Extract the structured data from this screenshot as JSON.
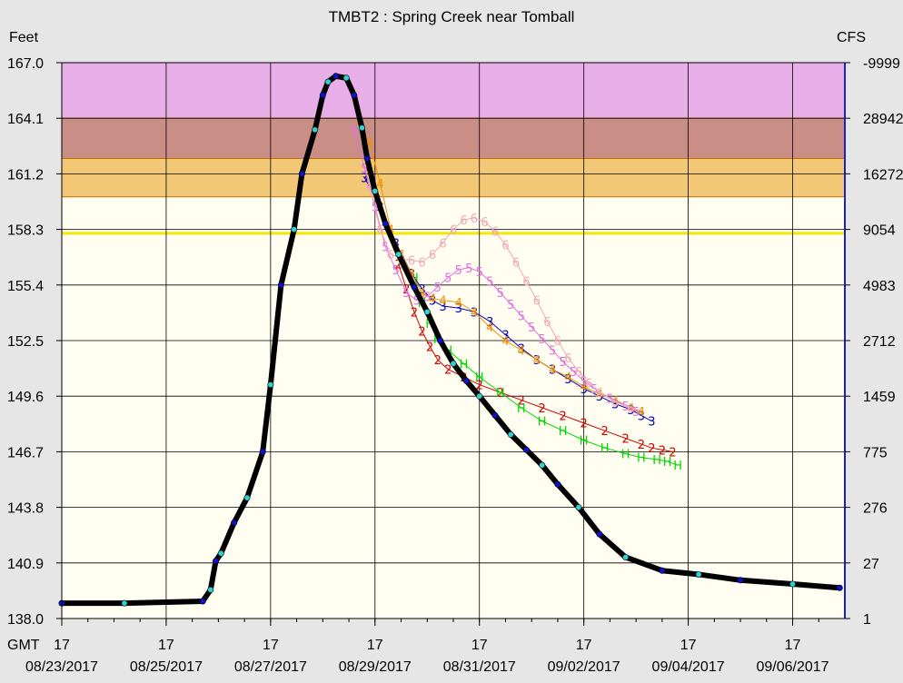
{
  "chart_data": {
    "type": "line",
    "title": "TMBT2  :  Spring Creek near Tomball",
    "ylabel_left": "Feet",
    "ylabel_right": "CFS",
    "x_prefix_label": "GMT",
    "yticks_left": [
      "167.0",
      "164.1",
      "161.2",
      "158.3",
      "155.4",
      "152.5",
      "149.6",
      "146.7",
      "143.8",
      "140.9",
      "138.0"
    ],
    "yticks_right": [
      "-9999",
      "28942",
      "16272",
      "9054",
      "4983",
      "2712",
      "1459",
      "775",
      "276",
      "27",
      "1"
    ],
    "ylim": [
      138.0,
      167.0
    ],
    "xlim_days": [
      0,
      15
    ],
    "xticks": [
      {
        "hour": "17",
        "date": "08/23/2017"
      },
      {
        "hour": "17",
        "date": "08/25/2017"
      },
      {
        "hour": "17",
        "date": "08/27/2017"
      },
      {
        "hour": "17",
        "date": "08/29/2017"
      },
      {
        "hour": "17",
        "date": "08/31/2017"
      },
      {
        "hour": "17",
        "date": "09/02/2017"
      },
      {
        "hour": "17",
        "date": "09/04/2017"
      },
      {
        "hour": "17",
        "date": "09/06/2017"
      }
    ],
    "bands": [
      {
        "from": 164.1,
        "to": 167.0,
        "color": "#e8aee8"
      },
      {
        "from": 162.0,
        "to": 164.1,
        "color": "#c98f86"
      },
      {
        "from": 160.0,
        "to": 162.0,
        "color": "#f2c877"
      }
    ],
    "threshold_line": {
      "value": 158.1,
      "color": "#f5e600"
    },
    "observed": {
      "color": "#000000",
      "marker_colors": [
        "#1010c8",
        "#30d0d0"
      ],
      "x": [
        0,
        1.2,
        2.7,
        2.85,
        2.95,
        3.05,
        3.3,
        3.55,
        3.85,
        4.0,
        4.2,
        4.45,
        4.6,
        4.85,
        5.0,
        5.1,
        5.25,
        5.45,
        5.6,
        5.75,
        5.85,
        6.0,
        6.2,
        6.45,
        6.75,
        7.0,
        7.25,
        7.5,
        7.75,
        8.0,
        8.3,
        8.6,
        8.9,
        9.2,
        9.5,
        9.9,
        10.3,
        10.8,
        11.5,
        12.2,
        13.0,
        14.0,
        14.9
      ],
      "y": [
        138.8,
        138.8,
        138.9,
        139.5,
        141.0,
        141.4,
        143.0,
        144.3,
        146.7,
        150.2,
        155.4,
        158.3,
        161.2,
        163.5,
        165.3,
        166.0,
        166.3,
        166.2,
        165.3,
        163.6,
        162.0,
        160.3,
        158.6,
        157.0,
        155.3,
        154.0,
        152.5,
        151.3,
        150.4,
        149.6,
        148.6,
        147.6,
        146.8,
        146.0,
        145.0,
        143.8,
        142.4,
        141.2,
        140.5,
        140.3,
        140.0,
        139.8,
        139.6
      ]
    },
    "forecast_series": [
      {
        "marker": "2",
        "color": "#d00000",
        "x": [
          6.45,
          6.6,
          6.75,
          6.9,
          7.05,
          7.2,
          7.4,
          7.7,
          8.0,
          8.4,
          8.8,
          9.2,
          9.6,
          10.0,
          10.4,
          10.8,
          11.1,
          11.3,
          11.5,
          11.7
        ],
        "y": [
          156.5,
          155.2,
          154.0,
          153.0,
          152.2,
          151.5,
          151.0,
          150.6,
          150.2,
          149.8,
          149.4,
          149.0,
          148.6,
          148.2,
          147.8,
          147.4,
          147.1,
          146.9,
          146.8,
          146.7
        ]
      },
      {
        "marker": "H",
        "color": "#00d800",
        "x": [
          6.75,
          6.9,
          7.05,
          7.2,
          7.4,
          7.7,
          8.0,
          8.4,
          8.8,
          9.2,
          9.6,
          10.0,
          10.4,
          10.8,
          11.1,
          11.4,
          11.6,
          11.8
        ],
        "y": [
          155.8,
          154.5,
          153.4,
          152.6,
          152.0,
          151.3,
          150.6,
          149.8,
          149.0,
          148.3,
          147.8,
          147.3,
          146.9,
          146.6,
          146.4,
          146.3,
          146.2,
          146.0
        ]
      },
      {
        "marker": "3",
        "color": "#0000c0",
        "x": [
          5.8,
          6.1,
          6.4,
          6.7,
          6.9,
          7.1,
          7.3,
          7.6,
          7.9,
          8.2,
          8.5,
          8.8,
          9.1,
          9.4,
          9.7,
          10.0,
          10.3,
          10.6,
          10.9,
          11.1,
          11.3
        ],
        "y": [
          161.0,
          159.5,
          157.6,
          156.0,
          155.2,
          154.6,
          154.3,
          154.2,
          154.0,
          153.5,
          152.8,
          152.1,
          151.5,
          151.0,
          150.5,
          150.0,
          149.6,
          149.2,
          148.9,
          148.6,
          148.3
        ]
      },
      {
        "marker": "4",
        "color": "#f09000",
        "x": [
          5.7,
          5.9,
          6.1,
          6.3,
          6.5,
          6.7,
          6.9,
          7.1,
          7.3,
          7.6,
          7.9,
          8.2,
          8.5,
          8.8,
          9.1,
          9.4,
          9.7,
          10.0,
          10.3,
          10.6,
          10.9,
          11.1
        ],
        "y": [
          164.0,
          162.8,
          160.7,
          158.3,
          157.0,
          156.0,
          155.0,
          154.7,
          154.6,
          154.5,
          154.0,
          153.2,
          152.5,
          152.0,
          151.5,
          151.0,
          150.6,
          150.1,
          149.7,
          149.4,
          149.0,
          148.8
        ]
      },
      {
        "marker": "5",
        "color": "#e070e0",
        "x": [
          5.6,
          5.8,
          6.0,
          6.2,
          6.4,
          6.6,
          6.8,
          7.0,
          7.2,
          7.4,
          7.6,
          7.8,
          8.0,
          8.2,
          8.4,
          8.6,
          8.8,
          9.0,
          9.2,
          9.4,
          9.6,
          9.8,
          10.0,
          10.2,
          10.5,
          10.8,
          11.0
        ],
        "y": [
          163.5,
          161.5,
          159.5,
          157.4,
          156.2,
          155.0,
          154.6,
          154.8,
          155.3,
          155.8,
          156.2,
          156.3,
          156.1,
          155.6,
          155.0,
          154.4,
          153.8,
          153.2,
          152.6,
          152.0,
          151.4,
          150.9,
          150.4,
          150.0,
          149.5,
          149.1,
          148.8
        ]
      },
      {
        "marker": "6",
        "color": "#f0a8b8",
        "x": [
          5.9,
          6.1,
          6.3,
          6.5,
          6.7,
          6.9,
          7.1,
          7.3,
          7.5,
          7.7,
          7.9,
          8.1,
          8.3,
          8.5,
          8.7,
          8.9,
          9.1,
          9.3,
          9.5,
          9.7,
          9.9,
          10.1,
          10.3,
          10.6,
          10.9
        ],
        "y": [
          160.5,
          158.3,
          157.0,
          156.8,
          156.7,
          156.6,
          157.0,
          157.6,
          158.3,
          158.8,
          158.9,
          158.7,
          158.2,
          157.5,
          156.6,
          155.6,
          154.6,
          153.5,
          152.5,
          151.6,
          150.9,
          150.3,
          149.8,
          149.3,
          149.0
        ]
      }
    ]
  }
}
